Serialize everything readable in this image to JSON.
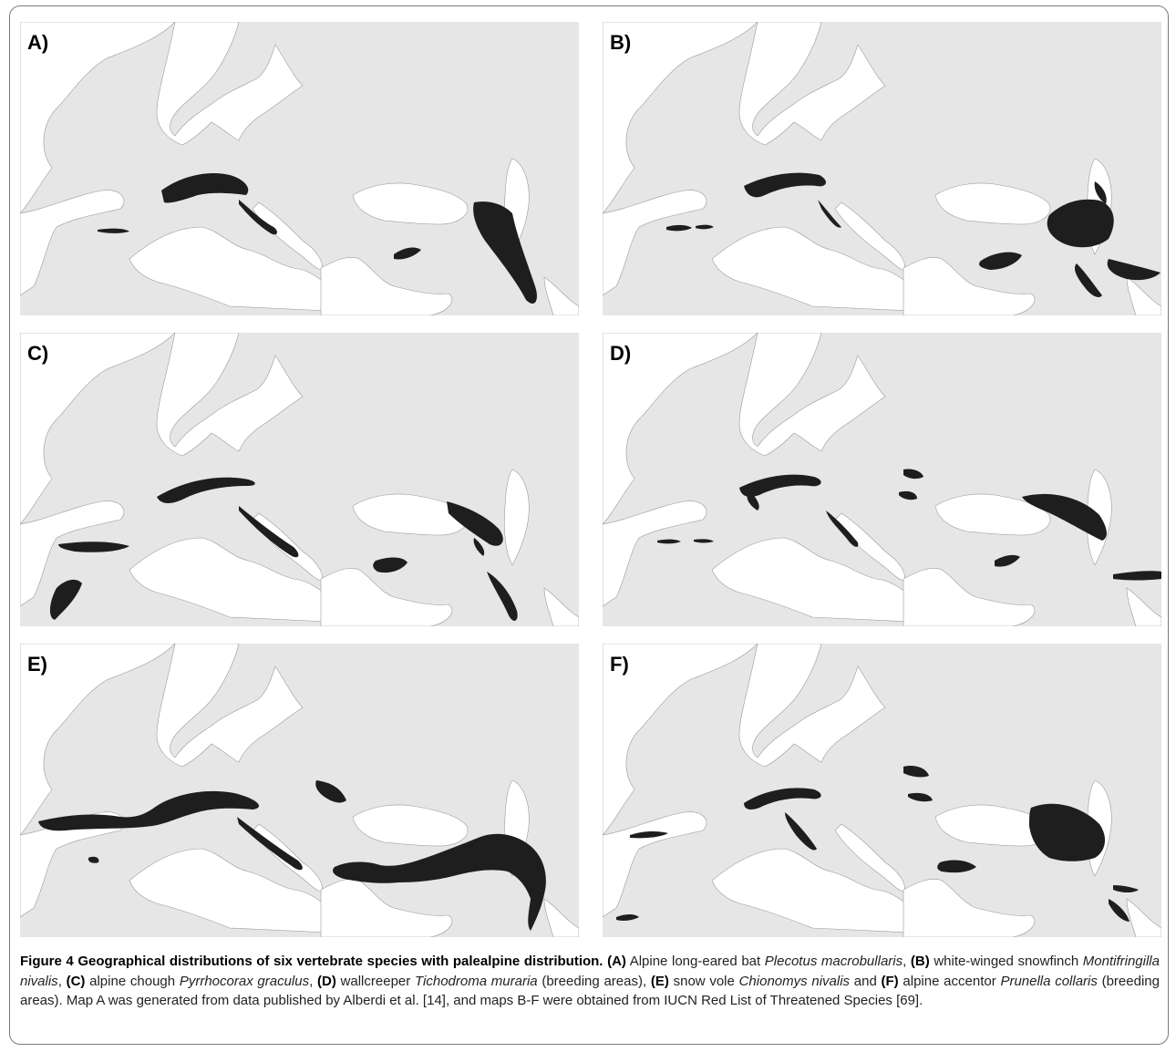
{
  "panels": [
    {
      "label": "A)"
    },
    {
      "label": "B)"
    },
    {
      "label": "C)"
    },
    {
      "label": "D)"
    },
    {
      "label": "E)"
    },
    {
      "label": "F)"
    }
  ],
  "caption": {
    "figure_title": "Figure 4 Geographical distributions of six vertebrate species with palealpine distribution.",
    "items": [
      {
        "tag": "(A)",
        "common": "Alpine long-eared bat",
        "latin": "Plecotus macrobullaris",
        "suffix": ","
      },
      {
        "tag": "(B)",
        "common": "white-winged snowfinch",
        "latin": "Montifringilla nivalis",
        "suffix": ","
      },
      {
        "tag": "(C)",
        "common": "alpine chough",
        "latin": "Pyrrhocorax graculus",
        "suffix": ","
      },
      {
        "tag": "(D)",
        "common": "wallcreeper",
        "latin": "Tichodroma muraria",
        "suffix": " (breeding areas),"
      },
      {
        "tag": "(E)",
        "common": "snow vole",
        "latin": "Chionomys nivalis",
        "suffix": " and"
      },
      {
        "tag": "(F)",
        "common": "alpine accentor",
        "latin": "Prunella collaris",
        "suffix": " (breeding areas)."
      }
    ],
    "tail": "Map A was generated from data published by Alberdi et al. [14], and maps B-F were obtained from IUCN Red List of Threatened Species [69]."
  },
  "colors": {
    "sea": "#ffffff",
    "land": "#e6e6e6",
    "range": "#1e1e1e",
    "frame": "#7a7a7a"
  }
}
